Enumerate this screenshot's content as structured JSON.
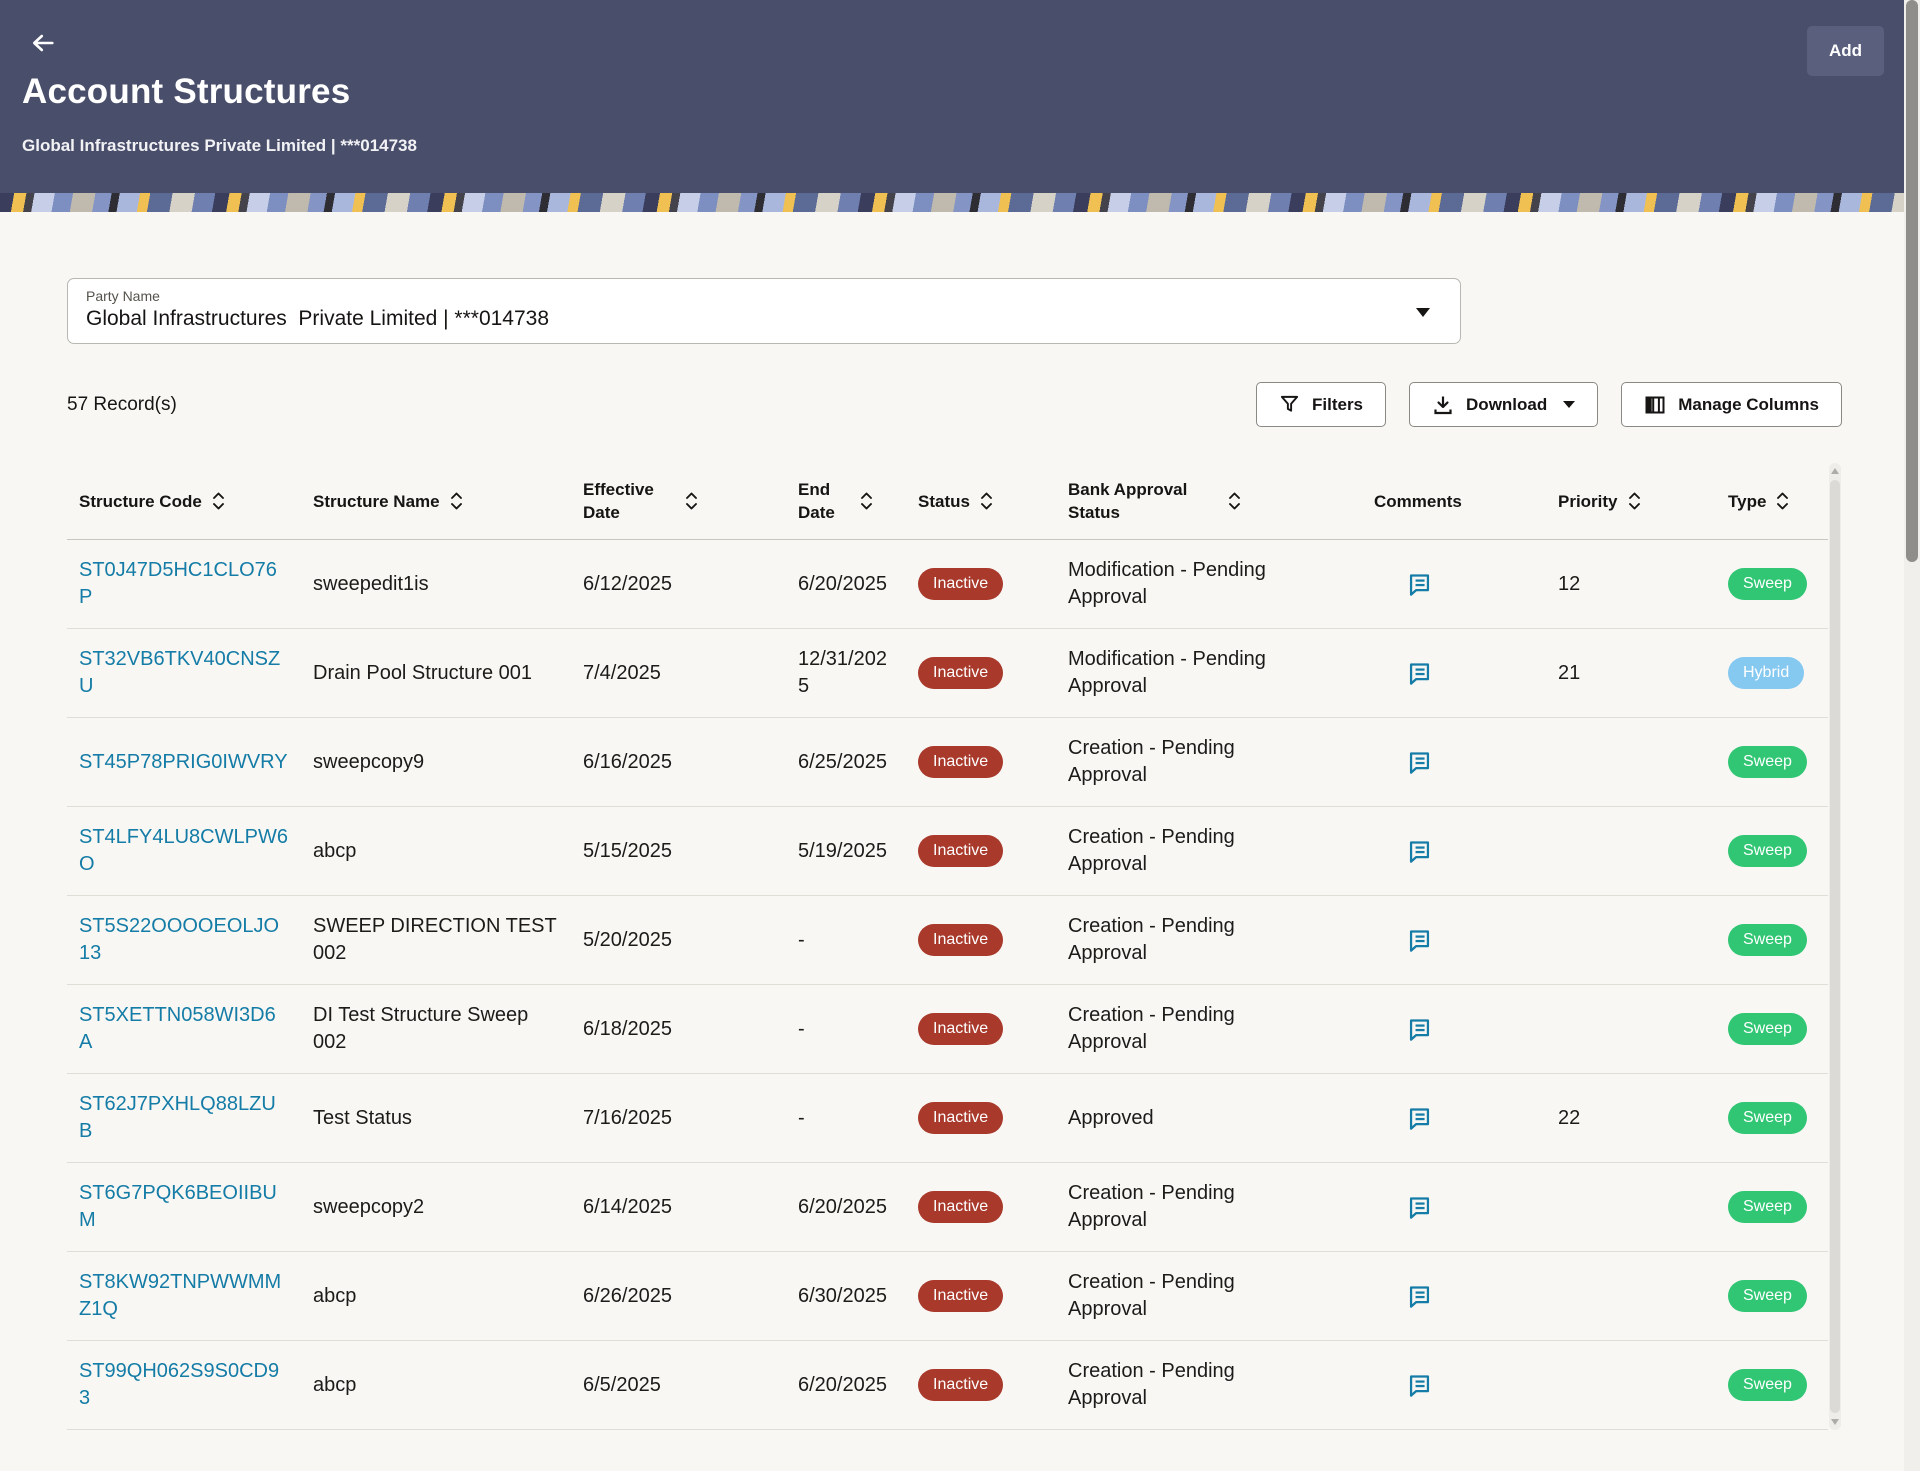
{
  "header": {
    "title": "Account Structures",
    "subtitle": "Global Infrastructures Private Limited | ***014738",
    "add_label": "Add"
  },
  "party": {
    "label": "Party Name",
    "value": "Global Infrastructures  Private Limited | ***014738"
  },
  "toolbar": {
    "records_count": "57 Record(s)",
    "filters_label": "Filters",
    "download_label": "Download",
    "manage_columns_label": "Manage Columns"
  },
  "table": {
    "columns": [
      {
        "label": "Structure Code",
        "sortable": true
      },
      {
        "label": "Structure Name",
        "sortable": true
      },
      {
        "label": "Effective Date",
        "sortable": true
      },
      {
        "label": "End Date",
        "sortable": true
      },
      {
        "label": "Status",
        "sortable": true
      },
      {
        "label": "Bank Approval Status",
        "sortable": true
      },
      {
        "label": "Comments",
        "sortable": false
      },
      {
        "label": "Priority",
        "sortable": true
      },
      {
        "label": "Type",
        "sortable": true
      }
    ],
    "rows": [
      {
        "code": "ST0J47D5HC1CLO76P",
        "name": "sweepedit1is",
        "effective_date": "6/12/2025",
        "end_date": "6/20/2025",
        "status": "Inactive",
        "bank_approval_status": "Modification - Pending Approval",
        "has_comment": true,
        "priority": "12",
        "type": "Sweep"
      },
      {
        "code": "ST32VB6TKV40CNSZU",
        "name": "Drain Pool Structure 001",
        "effective_date": "7/4/2025",
        "end_date": "12/31/2025",
        "status": "Inactive",
        "bank_approval_status": "Modification - Pending Approval",
        "has_comment": true,
        "priority": "21",
        "type": "Hybrid"
      },
      {
        "code": "ST45P78PRIG0IWVRY",
        "name": "sweepcopy9",
        "effective_date": "6/16/2025",
        "end_date": "6/25/2025",
        "status": "Inactive",
        "bank_approval_status": "Creation - Pending Approval",
        "has_comment": true,
        "priority": "",
        "type": "Sweep"
      },
      {
        "code": "ST4LFY4LU8CWLPW6O",
        "name": "abcp",
        "effective_date": "5/15/2025",
        "end_date": "5/19/2025",
        "status": "Inactive",
        "bank_approval_status": "Creation - Pending Approval",
        "has_comment": true,
        "priority": "",
        "type": "Sweep"
      },
      {
        "code": "ST5S22OOOOEOLJO13",
        "name": "SWEEP DIRECTION TEST 002",
        "effective_date": "5/20/2025",
        "end_date": "-",
        "status": "Inactive",
        "bank_approval_status": "Creation - Pending Approval",
        "has_comment": true,
        "priority": "",
        "type": "Sweep"
      },
      {
        "code": "ST5XETTN058WI3D6A",
        "name": "DI Test Structure Sweep 002",
        "effective_date": "6/18/2025",
        "end_date": "-",
        "status": "Inactive",
        "bank_approval_status": "Creation - Pending Approval",
        "has_comment": true,
        "priority": "",
        "type": "Sweep"
      },
      {
        "code": "ST62J7PXHLQ88LZUB",
        "name": "Test Status",
        "effective_date": "7/16/2025",
        "end_date": "-",
        "status": "Inactive",
        "bank_approval_status": "Approved",
        "has_comment": true,
        "priority": "22",
        "type": "Sweep"
      },
      {
        "code": "ST6G7PQK6BEOIIBUM",
        "name": "sweepcopy2",
        "effective_date": "6/14/2025",
        "end_date": "6/20/2025",
        "status": "Inactive",
        "bank_approval_status": "Creation - Pending Approval",
        "has_comment": true,
        "priority": "",
        "type": "Sweep"
      },
      {
        "code": "ST8KW92TNPWWMMZ1Q",
        "name": "abcp",
        "effective_date": "6/26/2025",
        "end_date": "6/30/2025",
        "status": "Inactive",
        "bank_approval_status": "Creation - Pending Approval",
        "has_comment": true,
        "priority": "",
        "type": "Sweep"
      },
      {
        "code": "ST99QH062S9S0CD93",
        "name": "abcp",
        "effective_date": "6/5/2025",
        "end_date": "6/20/2025",
        "status": "Inactive",
        "bank_approval_status": "Creation - Pending Approval",
        "has_comment": true,
        "priority": "",
        "type": "Sweep"
      }
    ]
  },
  "colors": {
    "header_bg": "#494e6b",
    "link": "#147ca6",
    "status_inactive": "#a8392b",
    "type_sweep": "#31c674",
    "type_hybrid": "#85c8f0"
  }
}
